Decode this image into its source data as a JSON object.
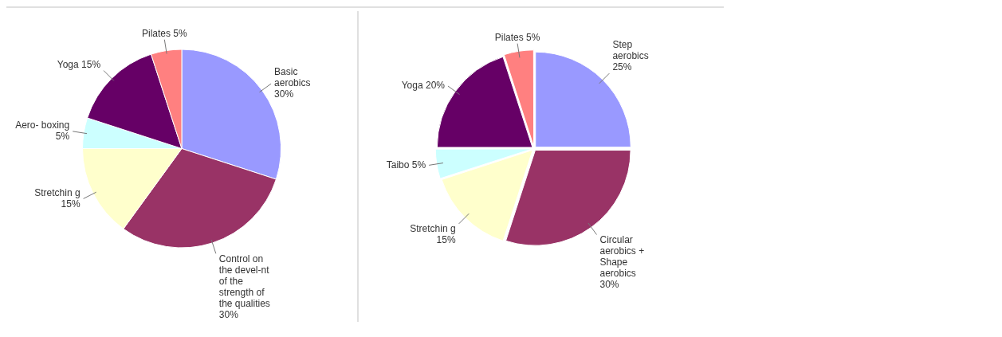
{
  "chart_data": [
    {
      "type": "pie",
      "categories": [
        "Basic aerobics",
        "Control on the devel-nt of the strength of the qualities",
        "Stretchin g",
        "Aero- boxing",
        "Yoga",
        "Pilates"
      ],
      "values": [
        30,
        30,
        15,
        5,
        15,
        5
      ],
      "value_labels": [
        "30%",
        "30%",
        "15%",
        "5%",
        "15%",
        "5%"
      ],
      "colors": [
        "#9999ff",
        "#993366",
        "#ffffcc",
        "#ccffff",
        "#660066",
        "#ff8080"
      ],
      "legend": false
    },
    {
      "type": "pie",
      "categories": [
        "Step aerobics",
        "Circular aerobics + Shape aerobics",
        "Stretchin g",
        "Taibo",
        "Yoga",
        "Pilates"
      ],
      "values": [
        25,
        30,
        15,
        5,
        20,
        5
      ],
      "value_labels": [
        "25%",
        "30%",
        "15%",
        "5%",
        "20%",
        "5%"
      ],
      "colors": [
        "#9999ff",
        "#993366",
        "#ffffcc",
        "#ccffff",
        "#660066",
        "#ff8080"
      ],
      "legend": false
    }
  ]
}
